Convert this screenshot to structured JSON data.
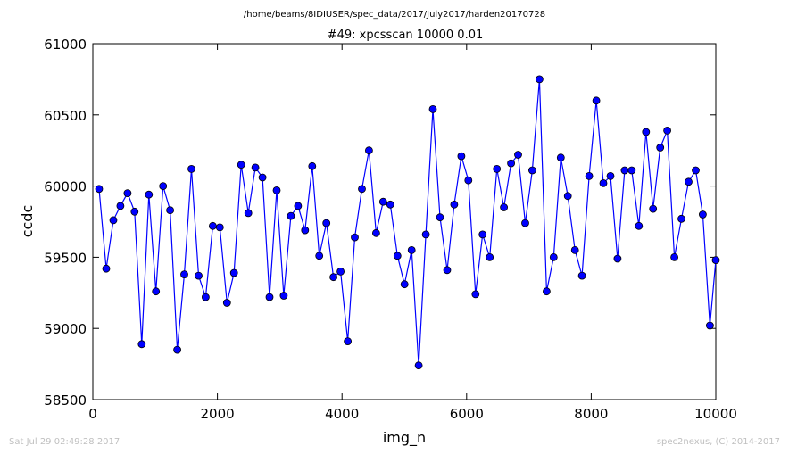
{
  "header": {
    "path": "/home/beams/8IDIUSER/spec_data/2017/July2017/harden20170728"
  },
  "footer": {
    "timestamp": "Sat Jul 29 02:49:28 2017",
    "credit": "spec2nexus, (C) 2014-2017"
  },
  "colors": {
    "series": "#0000ff",
    "axes": "#000000",
    "footer_text": "#c0c0c0"
  },
  "chart_data": {
    "type": "line",
    "title": "#49: xpcsscan 10000 0.01",
    "xlabel": "img_n",
    "ylabel": "ccdc",
    "xlim": [
      0,
      10000
    ],
    "ylim": [
      58500,
      61000
    ],
    "xticks": [
      0,
      2000,
      4000,
      6000,
      8000,
      10000
    ],
    "yticks": [
      58500,
      59000,
      59500,
      60000,
      60500,
      61000
    ],
    "xtick_labels": [
      "0",
      "2000",
      "4000",
      "6000",
      "8000",
      "10000"
    ],
    "ytick_labels": [
      "58500",
      "59000",
      "59500",
      "60000",
      "60500",
      "61000"
    ],
    "grid": false,
    "marker": "circle",
    "series": [
      {
        "x": [
          101,
          215,
          329,
          443,
          557,
          671,
          785,
          899,
          1013,
          1127,
          1241,
          1355,
          1469,
          1583,
          1697,
          1811,
          1925,
          2039,
          2153,
          2267,
          2381,
          2495,
          2609,
          2723,
          2837,
          2951,
          3065,
          3179,
          3293,
          3407,
          3521,
          3635,
          3749,
          3863,
          3977,
          4091,
          4205,
          4319,
          4433,
          4547,
          4661,
          4775,
          4889,
          5003,
          5117,
          5231,
          5345,
          5459,
          5573,
          5687,
          5801,
          5915,
          6029,
          6143,
          6257,
          6371,
          6485,
          6599,
          6713,
          6827,
          6941,
          7055,
          7169,
          7283,
          7397,
          7511,
          7625,
          7739,
          7853,
          7967,
          8081,
          8195,
          8309,
          8423,
          8537,
          8651,
          8765,
          8879,
          8993,
          9107,
          9221,
          9335,
          9449,
          9563,
          9677,
          9791,
          9905,
          10000
        ],
        "values": [
          59980,
          59420,
          59760,
          59860,
          59950,
          59820,
          58890,
          59940,
          59260,
          60000,
          59830,
          58850,
          59380,
          60120,
          59370,
          59220,
          59720,
          59710,
          59180,
          59390,
          60150,
          59810,
          60130,
          60060,
          59220,
          59970,
          59230,
          59790,
          59860,
          59690,
          60140,
          59510,
          59740,
          59360,
          59400,
          58910,
          59640,
          59980,
          60250,
          59670,
          59890,
          59870,
          59510,
          59310,
          59550,
          58740,
          59660,
          60540,
          59780,
          59410,
          59870,
          60210,
          60040,
          59240,
          59660,
          59500,
          60120,
          59850,
          60160,
          60220,
          59740,
          60110,
          60750,
          59260,
          59500,
          60200,
          59930,
          59550,
          59370,
          60070,
          60600,
          60020,
          60070,
          59490,
          60110,
          60110,
          59720,
          60380,
          59840,
          60270,
          60390,
          59500,
          59770,
          60030,
          60110,
          59800,
          59020,
          59480
        ]
      }
    ]
  }
}
